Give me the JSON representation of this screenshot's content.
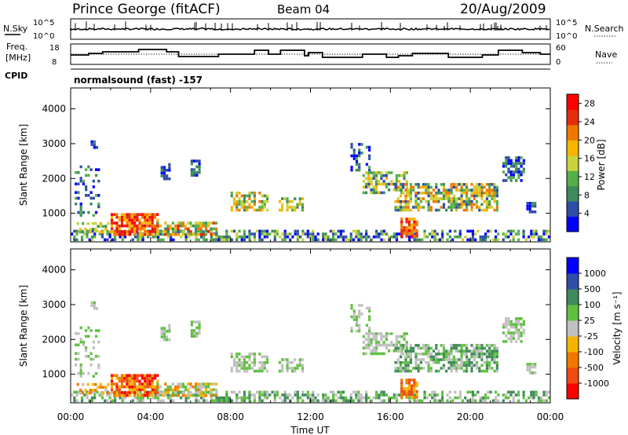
{
  "header": {
    "station": "Prince George (fitACF)",
    "beam": "Beam 04",
    "date": "20/Aug/2009"
  },
  "strip1": {
    "left_label": "N.Sky",
    "right_label": "N.Search",
    "left_ticks": [
      "10^5",
      "10^0"
    ],
    "right_ticks": [
      "10^5",
      "10^0"
    ]
  },
  "strip2": {
    "left_label_top": "Freq.",
    "left_label_bottom": "[MHz]",
    "right_label": "Nave",
    "left_ticks": [
      "18",
      "8"
    ],
    "right_ticks": [
      "60",
      "0"
    ]
  },
  "cpid": {
    "label": "CPID",
    "text": "normalsound (fast) -157"
  },
  "colors": {
    "power_scale": [
      "#0000ff",
      "#2e4da6",
      "#3f8a5a",
      "#55b04a",
      "#c8d23a",
      "#f5b400",
      "#f07800",
      "#e62d0a",
      "#ff0000"
    ],
    "velocity_scale": [
      "#ff0000",
      "#f04a10",
      "#f07800",
      "#f5b400",
      "#c0c0c0",
      "#60c040",
      "#3f8a5a",
      "#2e4da6",
      "#0000ff"
    ]
  },
  "chart_data": [
    {
      "type": "heatmap",
      "title": "",
      "ylabel": "Slant Range [km]",
      "yticks": [
        "1000",
        "2000",
        "3000",
        "4000"
      ],
      "ylim": [
        180,
        4600
      ],
      "colorbar_label": "Power [dB]",
      "colorbar_ticks": [
        "4",
        "8",
        "12",
        "16",
        "20",
        "24",
        "28"
      ],
      "colorbar_range": [
        0,
        30
      ]
    },
    {
      "type": "heatmap",
      "title": "",
      "xlabel": "Time UT",
      "ylabel": "Slant Range [km]",
      "xticks": [
        "00:00",
        "04:00",
        "08:00",
        "12:00",
        "16:00",
        "20:00",
        "00:00"
      ],
      "xlim": [
        0,
        24
      ],
      "yticks": [
        "1000",
        "2000",
        "3000",
        "4000"
      ],
      "ylim": [
        180,
        4600
      ],
      "colorbar_label": "Velocity [m s⁻¹]",
      "colorbar_ticks": [
        "1000",
        "500",
        "100",
        "25",
        "-25",
        "-100",
        "-500",
        "-1000"
      ]
    }
  ]
}
